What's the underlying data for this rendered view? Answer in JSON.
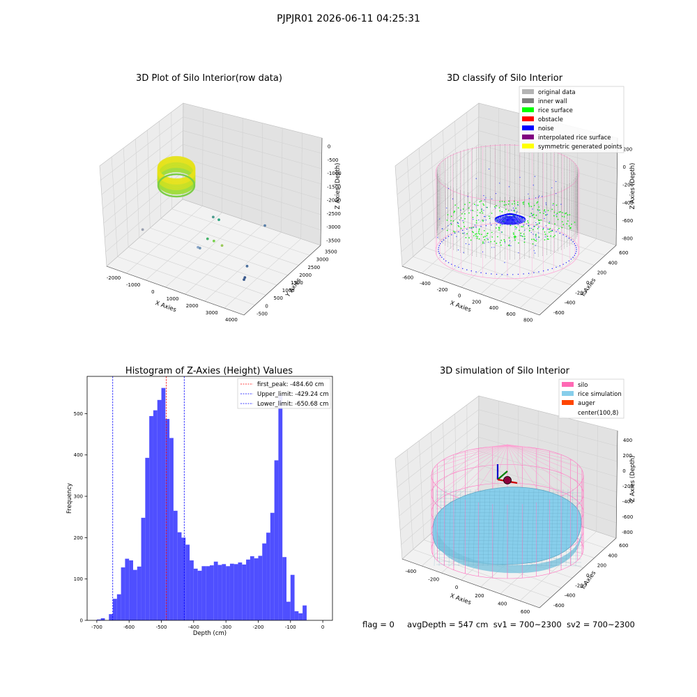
{
  "figure": {
    "suptitle": "PJPJR01 2026-06-11 04:25:31",
    "status": {
      "flag": "flag = 0",
      "avg_depth": "avgDepth = 547 cm",
      "sv1": "sv1 = 700~2300",
      "sv2": "sv2 = 700~2300"
    }
  },
  "chart_data": [
    {
      "type": "scatter",
      "projection": "3d",
      "title": "3D Plot of Silo Interior(row data)",
      "xlabel": "X Axies",
      "ylabel": "Y Axies",
      "zlabel": "Z Axies (Depth)",
      "x_ticks": [
        "-2000",
        "-1000",
        "0",
        "1000",
        "2000",
        "3000",
        "4000"
      ],
      "y_ticks": [
        "-500",
        "0",
        "500",
        "1000",
        "1500",
        "2000",
        "2500",
        "3000",
        "3500"
      ],
      "z_ticks": [
        "0",
        "-500",
        "-1000",
        "-1500",
        "-2000",
        "-2500",
        "-3000",
        "-3500"
      ],
      "xlim": [
        -2500,
        4000
      ],
      "ylim": [
        -700,
        3600
      ],
      "zlim": [
        -3700,
        200
      ],
      "colormap": "viridis",
      "grid": true,
      "outlier_points": [
        {
          "x": 1200,
          "y": 900,
          "z": -1700
        },
        {
          "x": 1300,
          "y": 1100,
          "z": -1900
        },
        {
          "x": 1100,
          "y": 700,
          "z": -2450
        },
        {
          "x": 1400,
          "y": 700,
          "z": -2450
        },
        {
          "x": 1700,
          "y": 800,
          "z": -2600
        },
        {
          "x": 900,
          "y": 400,
          "z": -2650
        },
        {
          "x": 950,
          "y": 450,
          "z": -2700
        },
        {
          "x": 2800,
          "y": 1900,
          "z": -2200
        },
        {
          "x": 2800,
          "y": 900,
          "z": -3150
        },
        {
          "x": -1800,
          "y": 500,
          "z": -2800
        },
        {
          "x": 3200,
          "y": 300,
          "z": -3100
        },
        {
          "x": 3200,
          "y": 250,
          "z": -3150
        }
      ]
    },
    {
      "type": "scatter",
      "projection": "3d",
      "title": "3D classify of Silo Interior",
      "xlabel": "X Axies",
      "ylabel": "Y Axies",
      "zlabel": "Z Axies (Depth)",
      "x_ticks": [
        "-600",
        "-400",
        "-200",
        "0",
        "200",
        "400",
        "600",
        "800"
      ],
      "y_ticks": [
        "-600",
        "-400",
        "-200",
        "0",
        "200",
        "400",
        "600"
      ],
      "z_ticks": [
        "200",
        "0",
        "-200",
        "-400",
        "-600",
        "-800"
      ],
      "xlim": [
        -650,
        850
      ],
      "ylim": [
        -650,
        650
      ],
      "zlim": [
        -900,
        350
      ],
      "grid": true,
      "legend_position": "upper right",
      "legend": [
        {
          "label": "original data",
          "color": "#b4b4b4"
        },
        {
          "label": "inner wall",
          "color": "#808080"
        },
        {
          "label": "rice surface",
          "color": "#00ff00"
        },
        {
          "label": "obstacle",
          "color": "#ff0000"
        },
        {
          "label": "noise",
          "color": "#0000ff"
        },
        {
          "label": "interpolated rice surface",
          "color": "#800080"
        },
        {
          "label": "symmetric generated points",
          "color": "#ffff00"
        }
      ]
    },
    {
      "type": "bar",
      "subtype": "histogram",
      "title": "Histogram of Z-Axies (Height) Values",
      "xlabel": "Depth (cm)",
      "ylabel": "Frequency",
      "xlim": [
        -730,
        30
      ],
      "ylim": [
        0,
        590
      ],
      "x_ticks": [
        -700,
        -600,
        -500,
        -400,
        -300,
        -200,
        -100,
        0
      ],
      "y_ticks": [
        0,
        100,
        200,
        300,
        400,
        500
      ],
      "bar_color": "#4f4fff",
      "bin_width": 12.5,
      "bin_starts": [
        -700,
        -687.5,
        -675,
        -662.5,
        -650,
        -637.5,
        -625,
        -612.5,
        -600,
        -587.5,
        -575,
        -562.5,
        -550,
        -537.5,
        -525,
        -512.5,
        -500,
        -487.5,
        -475,
        -462.5,
        -450,
        -437.5,
        -425,
        -412.5,
        -400,
        -387.5,
        -375,
        -362.5,
        -350,
        -337.5,
        -325,
        -312.5,
        -300,
        -287.5,
        -275,
        -262.5,
        -250,
        -237.5,
        -225,
        -212.5,
        -200,
        -187.5,
        -175,
        -162.5,
        -150,
        -137.5,
        -125,
        -112.5,
        -100,
        -87.5,
        -75,
        -62.5,
        -50,
        -37.5,
        -25,
        -12.5
      ],
      "counts": [
        2,
        5,
        0,
        15,
        52,
        63,
        128,
        149,
        145,
        122,
        130,
        248,
        393,
        494,
        508,
        533,
        562,
        487,
        441,
        265,
        213,
        200,
        183,
        145,
        125,
        120,
        131,
        131,
        133,
        142,
        134,
        136,
        131,
        137,
        136,
        140,
        135,
        147,
        155,
        150,
        156,
        186,
        212,
        260,
        387,
        545,
        153,
        45,
        110,
        22,
        17,
        36,
        0,
        0,
        0,
        0
      ],
      "vlines": [
        {
          "x": -484.6,
          "label": "first_peak: -484.60 cm",
          "color": "#ff0000"
        },
        {
          "x": -429.24,
          "label": "Upper_limit: -429.24 cm",
          "color": "#0000ff"
        },
        {
          "x": -650.68,
          "label": "Lower_limit: -650.68 cm",
          "color": "#0000ff"
        }
      ],
      "legend_position": "upper right"
    },
    {
      "type": "surface",
      "projection": "3d",
      "title": "3D simulation of Silo Interior",
      "xlabel": "X Axies",
      "ylabel": "Y Axies",
      "zlabel": "Z Axies (Depth)",
      "x_ticks": [
        "-400",
        "-200",
        "0",
        "200",
        "400",
        "600"
      ],
      "y_ticks": [
        "-600",
        "-400",
        "-200",
        "0",
        "200",
        "400",
        "600"
      ],
      "z_ticks": [
        "400",
        "200",
        "0",
        "-200",
        "-400",
        "-600",
        "-800"
      ],
      "xlim": [
        -550,
        750
      ],
      "ylim": [
        -650,
        650
      ],
      "zlim": [
        -900,
        450
      ],
      "grid": true,
      "legend_position": "upper right",
      "legend": [
        {
          "label": "silo",
          "color": "#ff69b4"
        },
        {
          "label": "rice simulation",
          "color": "#87ceeb"
        },
        {
          "label": "auger",
          "color": "#ff4500"
        },
        {
          "label": "center(100,8)",
          "color": "#ffffff"
        }
      ]
    }
  ]
}
